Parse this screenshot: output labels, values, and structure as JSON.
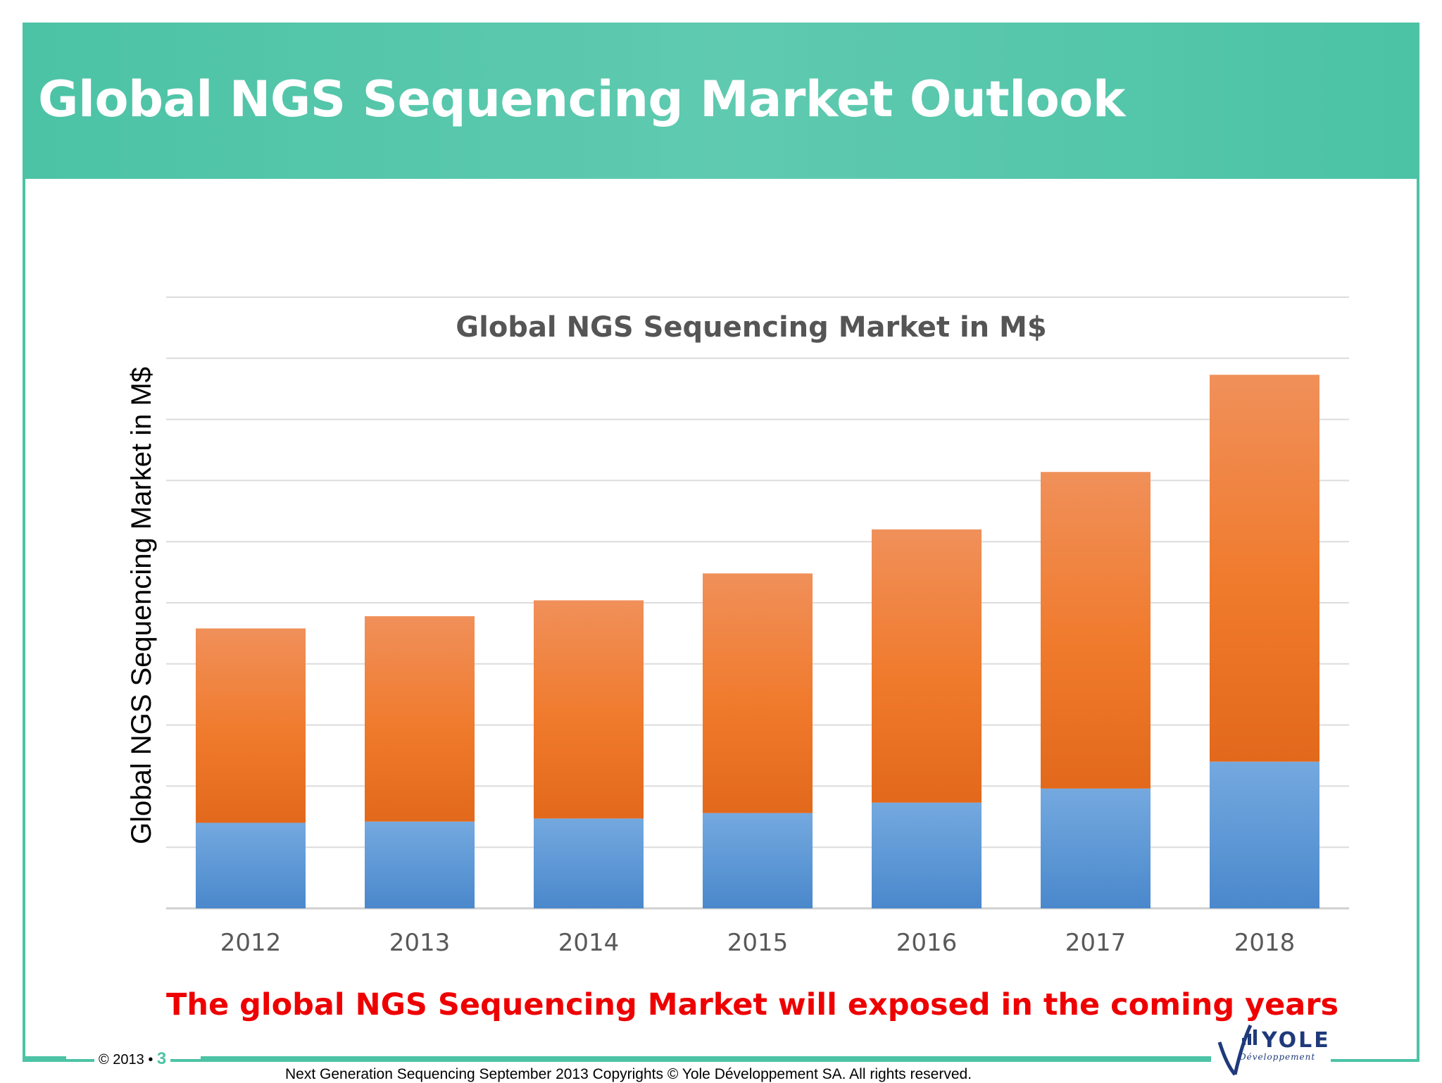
{
  "slide": {
    "title": "Global NGS Sequencing Market Outlook",
    "takeaway": "The global NGS Sequencing Market will exposed in the coming years"
  },
  "footer": {
    "copyright": "© 2013 •",
    "page_number": "3",
    "text": "Next Generation Sequencing September 2013 Copyrights © Yole Développement SA. All rights reserved."
  },
  "logo": {
    "name": "YOLE",
    "subtitle": "Développement"
  },
  "colors": {
    "accent": "#4cc3a5",
    "series_bottom": "#5b9bd5",
    "series_top": "#ed7d31",
    "takeaway": "#ee0000"
  },
  "chart_data": {
    "type": "bar",
    "stacked": true,
    "title": "Global NGS Sequencing Market in M$",
    "ylabel": "Global NGS Sequencing Market in M$",
    "xlabel": "",
    "categories": [
      "2012",
      "2013",
      "2014",
      "2015",
      "2016",
      "2017",
      "2018"
    ],
    "ylim": [
      0,
      10
    ],
    "grid": true,
    "legend": "none",
    "y_tick_labels": false,
    "series": [
      {
        "values": [
          1.4,
          1.42,
          1.47,
          1.56,
          1.73,
          1.96,
          2.4
        ],
        "color": "#5b9bd5"
      },
      {
        "values": [
          3.18,
          3.36,
          3.57,
          3.92,
          4.47,
          5.18,
          6.33
        ],
        "color": "#ed7d31"
      }
    ]
  }
}
